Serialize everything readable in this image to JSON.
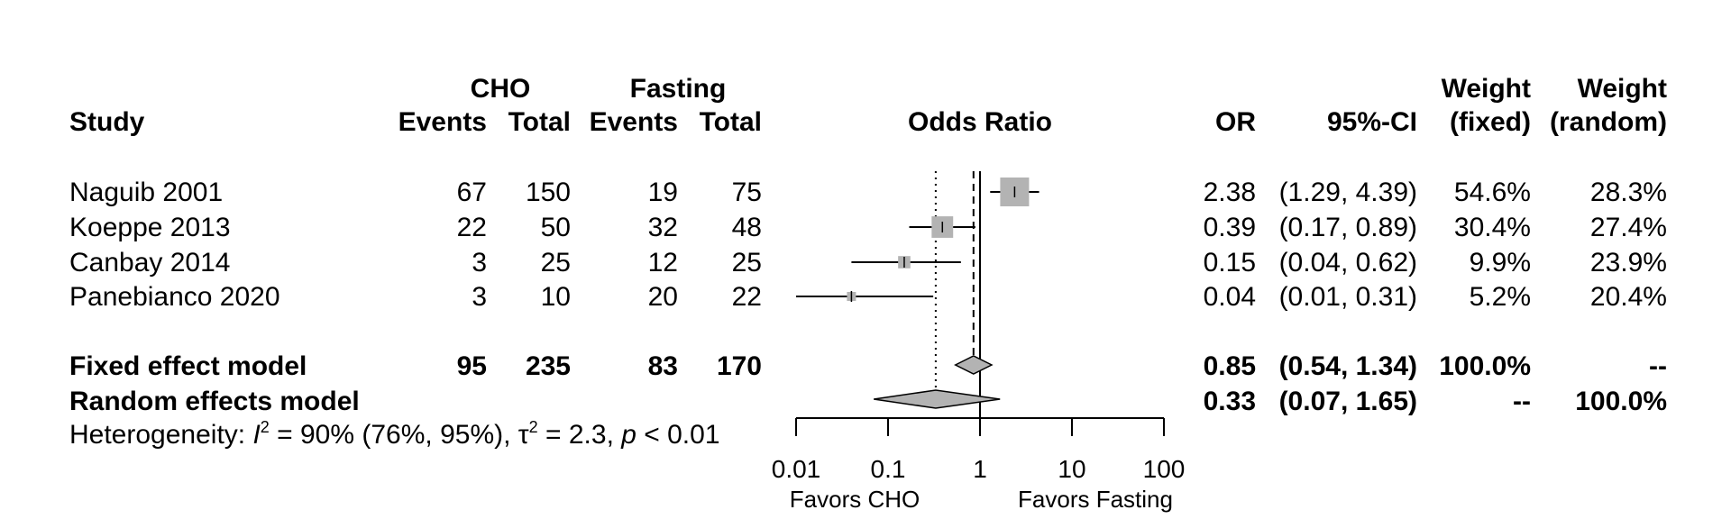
{
  "chart_data": {
    "type": "forest",
    "headers": {
      "study": "Study",
      "group1": "CHO",
      "group2": "Fasting",
      "events": "Events",
      "total": "Total",
      "plot": "Odds Ratio",
      "or": "OR",
      "ci": "95%-CI",
      "weight": "Weight",
      "weight_fixed": "(fixed)",
      "weight_random": "(random)"
    },
    "studies": [
      {
        "name": "Naguib 2001",
        "e1": "67",
        "t1": "150",
        "e2": "19",
        "t2": "75",
        "or": 2.38,
        "lo": 1.29,
        "hi": 4.39,
        "or_text": "2.38",
        "ci_text": "(1.29, 4.39)",
        "w_fixed": "54.6%",
        "w_random": "28.3%",
        "weight": 54.6
      },
      {
        "name": "Koeppe 2013",
        "e1": "22",
        "t1": "50",
        "e2": "32",
        "t2": "48",
        "or": 0.39,
        "lo": 0.17,
        "hi": 0.89,
        "or_text": "0.39",
        "ci_text": "(0.17, 0.89)",
        "w_fixed": "30.4%",
        "w_random": "27.4%",
        "weight": 30.4
      },
      {
        "name": "Canbay 2014",
        "e1": "3",
        "t1": "25",
        "e2": "12",
        "t2": "25",
        "or": 0.15,
        "lo": 0.04,
        "hi": 0.62,
        "or_text": "0.15",
        "ci_text": "(0.04, 0.62)",
        "w_fixed": "9.9%",
        "w_random": "23.9%",
        "weight": 9.9
      },
      {
        "name": "Panebianco 2020",
        "e1": "3",
        "t1": "10",
        "e2": "20",
        "t2": "22",
        "or": 0.04,
        "lo": 0.01,
        "hi": 0.31,
        "or_text": "0.04",
        "ci_text": "(0.01, 0.31)",
        "w_fixed": "5.2%",
        "w_random": "20.4%",
        "weight": 5.2
      }
    ],
    "fixed": {
      "name": "Fixed effect model",
      "e1": "95",
      "t1": "235",
      "e2": "83",
      "t2": "170",
      "or": 0.85,
      "lo": 0.54,
      "hi": 1.34,
      "or_text": "0.85",
      "ci_text": "(0.54, 1.34)",
      "w_fixed": "100.0%",
      "w_random": "--"
    },
    "random": {
      "name": "Random effects model",
      "or": 0.33,
      "lo": 0.07,
      "hi": 1.65,
      "or_text": "0.33",
      "ci_text": "(0.07, 1.65)",
      "w_fixed": "--",
      "w_random": "100.0%"
    },
    "heterogeneity": {
      "prefix": "Heterogeneity: ",
      "i_symbol": "I",
      "sup": "2",
      "i2_text": " = 90% (76%, 95%), ",
      "tau_symbol": "τ",
      "tau_text": " = 2.3, ",
      "p_symbol": "p",
      "p_text": " < 0.01"
    },
    "x_axis": {
      "scale": "log",
      "ticks": [
        0.01,
        0.1,
        1,
        10,
        100
      ],
      "tick_labels": [
        "0.01",
        "0.1",
        "1",
        "10",
        "100"
      ],
      "range": [
        0.01,
        100
      ],
      "ref_line": 1
    },
    "favors_left": "Favors CHO",
    "favors_right": "Favors Fasting",
    "colors": {
      "box": "#b3b3b3",
      "diamond": "#b3b3b3",
      "line": "#000000"
    }
  }
}
